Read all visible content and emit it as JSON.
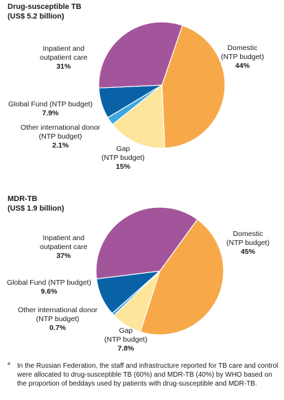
{
  "chart_data": [
    {
      "type": "pie",
      "title_line1": "Drug-susceptible TB",
      "title_line2": "(US$ 5.2 billion)",
      "slices": [
        {
          "label_line1": "Domestic",
          "label_line2": "(NTP budget)",
          "value_label": "44%",
          "value": 44,
          "color": "#f7a94a"
        },
        {
          "label_line1": "Gap",
          "label_line2": "(NTP budget)",
          "value_label": "15%",
          "value": 15,
          "color": "#fde59b"
        },
        {
          "label_line1": "Other international donor",
          "label_line2": "(NTP budget)",
          "value_label": "2.1%",
          "value": 2.1,
          "color": "#3ea7dd"
        },
        {
          "label_line1": "Global Fund (NTP budget)",
          "label_line2": "",
          "value_label": "7.9%",
          "value": 7.9,
          "color": "#0a62a6"
        },
        {
          "label_line1": "Inpatient and",
          "label_line2": "outpatient care",
          "value_label": "31%",
          "value": 31,
          "color": "#a3559b"
        }
      ]
    },
    {
      "type": "pie",
      "title_line1": "MDR-TB",
      "title_line2": "(US$ 1.9 billion)",
      "slices": [
        {
          "label_line1": "Domestic",
          "label_line2": "(NTP budget)",
          "value_label": "45%",
          "value": 45,
          "color": "#f7a94a"
        },
        {
          "label_line1": "Gap",
          "label_line2": "(NTP budget)",
          "value_label": "7.8%",
          "value": 7.8,
          "color": "#fde59b"
        },
        {
          "label_line1": "Other international donor",
          "label_line2": "(NTP budget)",
          "value_label": "0.7%",
          "value": 0.7,
          "color": "#3ea7dd"
        },
        {
          "label_line1": "Global Fund (NTP budget)",
          "label_line2": "",
          "value_label": "9.6%",
          "value": 9.6,
          "color": "#0a62a6"
        },
        {
          "label_line1": "Inpatient and",
          "label_line2": "outpatient care",
          "value_label": "37%",
          "value": 37,
          "color": "#a3559b"
        }
      ]
    }
  ],
  "footnote": {
    "marker": "a",
    "text": "In the Russian Federation, the staff and infrastructure reported for TB care and control were allocated to drug-susceptible TB (60%) and MDR-TB (40%) by WHO based on the proportion of beddays used by patients with drug-susceptible and MDR-TB."
  }
}
